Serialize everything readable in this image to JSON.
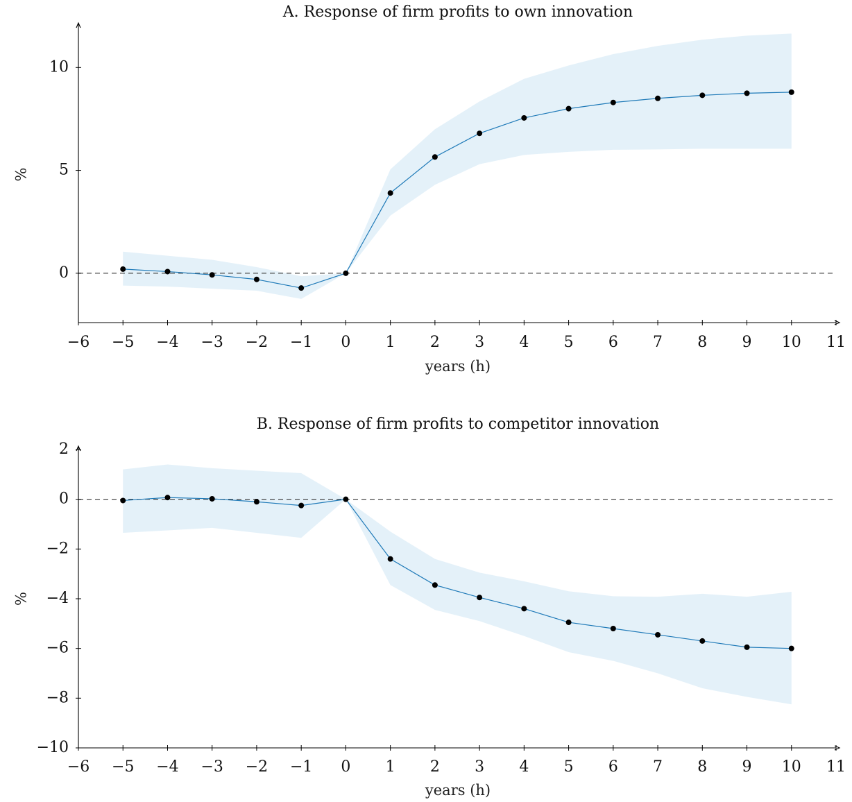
{
  "chart_data": [
    {
      "type": "line",
      "title": "A. Response of firm profits to own innovation",
      "xlabel": "years (h)",
      "ylabel": "%",
      "xlim": [
        -6,
        11
      ],
      "ylim": [
        -2.4,
        12
      ],
      "x_ticks": [
        -6,
        -5,
        -4,
        -3,
        -2,
        -1,
        0,
        1,
        2,
        3,
        4,
        5,
        6,
        7,
        8,
        9,
        10,
        11
      ],
      "y_ticks": [
        0,
        5,
        10
      ],
      "x_tick_labels": [
        "−6",
        "−5",
        "−4",
        "−3",
        "−2",
        "−1",
        "0",
        "1",
        "2",
        "3",
        "4",
        "5",
        "6",
        "7",
        "8",
        "9",
        "10",
        "11"
      ],
      "y_tick_labels": [
        "0",
        "5",
        "10"
      ],
      "zero_line": true,
      "grid": false,
      "colors": {
        "line": "#1f7ab8",
        "band": "#dfeef8",
        "point": "#000000"
      },
      "series": [
        {
          "x": [
            -5,
            -4,
            -3,
            -2,
            -1,
            0,
            1,
            2,
            3,
            4,
            5,
            6,
            7,
            8,
            9,
            10
          ],
          "values": [
            0.2,
            0.08,
            -0.08,
            -0.3,
            -0.72,
            0.0,
            3.9,
            5.65,
            6.8,
            7.55,
            8.0,
            8.3,
            8.5,
            8.65,
            8.75,
            8.8
          ],
          "lower": [
            -0.6,
            -0.65,
            -0.75,
            -0.85,
            -1.25,
            0.0,
            2.8,
            4.3,
            5.3,
            5.75,
            5.9,
            6.0,
            6.02,
            6.05,
            6.05,
            6.05
          ],
          "upper": [
            1.05,
            0.85,
            0.65,
            0.3,
            -0.15,
            0.0,
            5.05,
            7.0,
            8.35,
            9.45,
            10.1,
            10.65,
            11.05,
            11.35,
            11.55,
            11.65
          ]
        }
      ]
    },
    {
      "type": "line",
      "title": "B. Response of firm profits to competitor innovation",
      "xlabel": "years (h)",
      "ylabel": "%",
      "xlim": [
        -6,
        11
      ],
      "ylim": [
        -10,
        2
      ],
      "x_ticks": [
        -6,
        -5,
        -4,
        -3,
        -2,
        -1,
        0,
        1,
        2,
        3,
        4,
        5,
        6,
        7,
        8,
        9,
        10,
        11
      ],
      "y_ticks": [
        -10,
        -8,
        -6,
        -4,
        -2,
        0,
        2
      ],
      "x_tick_labels": [
        "−6",
        "−5",
        "−4",
        "−3",
        "−2",
        "−1",
        "0",
        "1",
        "2",
        "3",
        "4",
        "5",
        "6",
        "7",
        "8",
        "9",
        "10",
        "11"
      ],
      "y_tick_labels": [
        "−10",
        "−8",
        "−6",
        "−4",
        "−2",
        "0",
        "2"
      ],
      "zero_line": true,
      "grid": false,
      "colors": {
        "line": "#1f7ab8",
        "band": "#dfeef8",
        "point": "#000000"
      },
      "series": [
        {
          "x": [
            -5,
            -4,
            -3,
            -2,
            -1,
            0,
            1,
            2,
            3,
            4,
            5,
            6,
            7,
            8,
            9,
            10
          ],
          "values": [
            -0.05,
            0.07,
            0.02,
            -0.1,
            -0.25,
            0.0,
            -2.4,
            -3.45,
            -3.95,
            -4.4,
            -4.95,
            -5.2,
            -5.45,
            -5.7,
            -5.95,
            -6.0
          ],
          "lower": [
            -1.35,
            -1.25,
            -1.15,
            -1.35,
            -1.55,
            0.0,
            -3.45,
            -4.45,
            -4.9,
            -5.5,
            -6.15,
            -6.5,
            -7.0,
            -7.6,
            -7.95,
            -8.25
          ],
          "upper": [
            1.2,
            1.4,
            1.25,
            1.15,
            1.05,
            0.0,
            -1.3,
            -2.4,
            -2.95,
            -3.3,
            -3.7,
            -3.9,
            -3.92,
            -3.8,
            -3.92,
            -3.72
          ]
        }
      ]
    }
  ]
}
